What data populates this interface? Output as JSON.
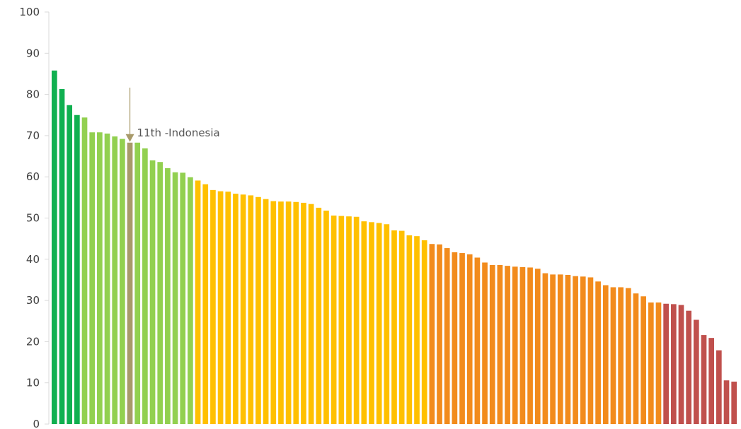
{
  "chart_data": {
    "type": "bar",
    "title": "",
    "xlabel": "",
    "ylabel": "",
    "ylim": [
      0,
      100
    ],
    "yticks": [
      0,
      10,
      20,
      30,
      40,
      50,
      60,
      70,
      80,
      90,
      100
    ],
    "grid": false,
    "legend": "none",
    "values": [
      85.8,
      81.3,
      77.4,
      75.0,
      74.4,
      70.8,
      70.8,
      70.5,
      69.8,
      69.2,
      68.3,
      68.3,
      66.9,
      64.0,
      63.6,
      62.1,
      61.1,
      61.0,
      59.9,
      59.1,
      58.2,
      56.8,
      56.5,
      56.4,
      55.9,
      55.7,
      55.5,
      55.1,
      54.6,
      54.1,
      54.0,
      54.0,
      53.9,
      53.7,
      53.4,
      52.5,
      51.8,
      50.6,
      50.5,
      50.4,
      50.3,
      49.2,
      49.0,
      48.8,
      48.5,
      47.0,
      46.9,
      45.8,
      45.6,
      44.6,
      43.7,
      43.6,
      42.7,
      41.7,
      41.5,
      41.2,
      40.4,
      39.2,
      38.6,
      38.6,
      38.4,
      38.2,
      38.1,
      38.0,
      37.7,
      36.6,
      36.3,
      36.3,
      36.2,
      35.9,
      35.8,
      35.6,
      34.6,
      33.7,
      33.2,
      33.2,
      33.0,
      31.7,
      31.0,
      29.5,
      29.5,
      29.2,
      29.1,
      28.9,
      27.5,
      25.3,
      21.6,
      20.9,
      17.9,
      10.6,
      10.3
    ],
    "highlight": {
      "index": 10,
      "label": "11th -Indonesia",
      "color": "#a89a6a"
    },
    "colors": {
      "dark_green": "#10b050",
      "light_green": "#92d050",
      "yellow": "#ffc000",
      "orange": "#f28b1c",
      "red": "#c0504d",
      "axis": "#d9d9d9",
      "arrow": "#a89a6a"
    },
    "color_groups": [
      {
        "color_key": "dark_green",
        "count": 4
      },
      {
        "color_key": "light_green",
        "count": 15
      },
      {
        "color_key": "yellow",
        "count": 31
      },
      {
        "color_key": "orange",
        "count": 31
      },
      {
        "color_key": "red",
        "count": 10
      }
    ]
  }
}
